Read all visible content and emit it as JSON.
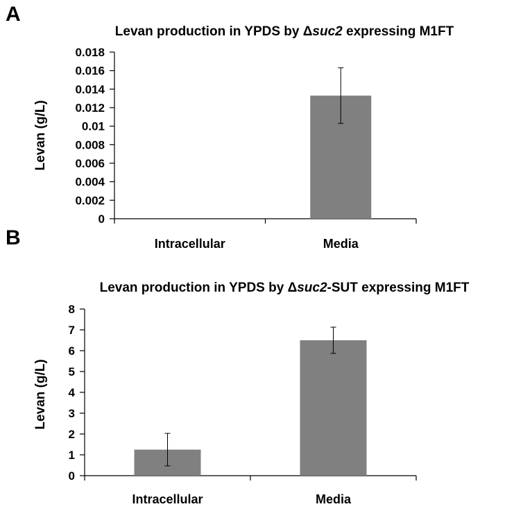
{
  "panels": [
    {
      "letter": "A",
      "title_pre": "Levan production in YPDS by Δ",
      "title_ital": "suc2",
      "title_post": " expressing M1FT",
      "ylabel": "Levan (g/L)"
    },
    {
      "letter": "B",
      "title_pre": "Levan production in YPDS by Δ",
      "title_ital": "suc2",
      "title_post": "-SUT expressing M1FT",
      "ylabel": "Levan (g/L)"
    }
  ],
  "chart_data": [
    {
      "type": "bar",
      "title": "Levan production in YPDS by Δsuc2 expressing M1FT",
      "xlabel": "",
      "ylabel": "Levan (g/L)",
      "categories": [
        "Intracellular",
        "Media"
      ],
      "values": [
        0,
        0.0133
      ],
      "errors": [
        0,
        0.003
      ],
      "ylim": [
        0,
        0.018
      ],
      "yticks": [
        "0",
        "0.002",
        "0.004",
        "0.006",
        "0.008",
        "0.01",
        "0.012",
        "0.014",
        "0.016",
        "0.018"
      ],
      "bar_color": "#808080",
      "grid": false
    },
    {
      "type": "bar",
      "title": "Levan production in YPDS by Δsuc2-SUT expressing M1FT",
      "xlabel": "",
      "ylabel": "Levan (g/L)",
      "categories": [
        "Intracellular",
        "Media"
      ],
      "values": [
        1.25,
        6.5
      ],
      "errors": [
        0.78,
        0.63
      ],
      "ylim": [
        0,
        8
      ],
      "yticks": [
        "0",
        "1",
        "2",
        "3",
        "4",
        "5",
        "6",
        "7",
        "8"
      ],
      "bar_color": "#808080",
      "grid": false
    }
  ]
}
